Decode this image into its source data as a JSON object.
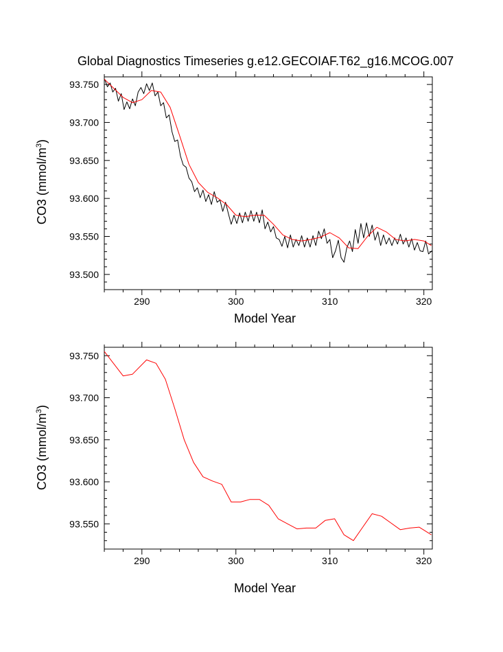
{
  "chart_data": [
    {
      "type": "line",
      "title": "Global Diagnostics Timeseries g.e12.GECOIAF.T62_g16.MCOG.007",
      "xlabel": "Model Year",
      "ylabel_main": "CO3 (mmol/m",
      "ylabel_sup": "3",
      "ylabel_close": ")",
      "xlim": [
        286.0,
        320.9
      ],
      "ylim": [
        93.48,
        93.76
      ],
      "xticks": [
        290,
        300,
        310,
        320
      ],
      "xtick_labels": [
        "290",
        "300",
        "310",
        "320"
      ],
      "yticks": [
        93.5,
        93.55,
        93.6,
        93.65,
        93.7,
        93.75
      ],
      "ytick_labels": [
        "93.500",
        "93.550",
        "93.600",
        "93.650",
        "93.700",
        "93.750"
      ],
      "grid": false,
      "series_colors": [
        "#000000",
        "#ff0000"
      ],
      "monthly": {
        "x": [
          286.04,
          286.33,
          286.62,
          286.9,
          287.2,
          287.5,
          287.8,
          288.1,
          288.4,
          288.7,
          289.0,
          289.3,
          289.6,
          289.9,
          290.2,
          290.5,
          290.8,
          291.1,
          291.4,
          291.7,
          292.0,
          292.3,
          292.6,
          292.9,
          293.2,
          293.5,
          293.8,
          294.1,
          294.4,
          294.7,
          295.0,
          295.3,
          295.6,
          295.9,
          296.2,
          296.5,
          296.8,
          297.1,
          297.4,
          297.7,
          298.0,
          298.3,
          298.6,
          298.9,
          299.2,
          299.5,
          299.8,
          300.1,
          300.4,
          300.7,
          301.0,
          301.3,
          301.6,
          301.9,
          302.2,
          302.5,
          302.8,
          303.1,
          303.4,
          303.7,
          304.0,
          304.3,
          304.6,
          304.9,
          305.2,
          305.5,
          305.8,
          306.1,
          306.4,
          306.7,
          307.0,
          307.3,
          307.6,
          307.9,
          308.2,
          308.5,
          308.8,
          309.1,
          309.4,
          309.7,
          310.0,
          310.3,
          310.6,
          310.9,
          311.2,
          311.5,
          311.8,
          312.1,
          312.4,
          312.7,
          313.0,
          313.3,
          313.6,
          313.9,
          314.2,
          314.5,
          314.8,
          315.1,
          315.4,
          315.7,
          316.0,
          316.3,
          316.6,
          316.9,
          317.2,
          317.5,
          317.8,
          318.1,
          318.4,
          318.7,
          319.0,
          319.3,
          319.6,
          319.9,
          320.2,
          320.5,
          320.85
        ],
        "y": [
          93.757,
          93.747,
          93.752,
          93.74,
          93.745,
          93.728,
          93.738,
          93.717,
          93.727,
          93.718,
          93.731,
          93.722,
          93.74,
          93.746,
          93.738,
          93.751,
          93.742,
          93.752,
          93.735,
          93.74,
          93.722,
          93.726,
          93.706,
          93.71,
          93.688,
          93.675,
          93.677,
          93.656,
          93.644,
          93.641,
          93.627,
          93.622,
          93.609,
          93.614,
          93.601,
          93.611,
          93.596,
          93.605,
          93.592,
          93.609,
          93.595,
          93.598,
          93.583,
          93.595,
          93.58,
          93.566,
          93.578,
          93.567,
          93.581,
          93.568,
          93.582,
          93.57,
          93.584,
          93.57,
          93.582,
          93.568,
          93.585,
          93.56,
          93.569,
          93.556,
          93.563,
          93.548,
          93.546,
          93.537,
          93.55,
          93.535,
          93.552,
          93.536,
          93.546,
          93.538,
          93.551,
          93.536,
          93.548,
          93.536,
          93.551,
          93.538,
          93.557,
          93.547,
          93.56,
          93.541,
          93.546,
          93.522,
          93.531,
          93.545,
          93.522,
          93.516,
          93.535,
          93.544,
          93.53,
          93.559,
          93.541,
          93.567,
          93.548,
          93.568,
          93.55,
          93.565,
          93.545,
          93.556,
          93.538,
          93.552,
          93.54,
          93.548,
          93.538,
          93.548,
          93.54,
          93.553,
          93.54,
          93.548,
          93.536,
          93.547,
          93.532,
          93.542,
          93.531,
          93.53,
          93.544,
          93.527,
          93.531
        ]
      },
      "smoothed": {
        "x": [
          286.0,
          287.0,
          288.0,
          289.0,
          290.0,
          291.0,
          292.0,
          293.0,
          294.0,
          295.0,
          296.0,
          297.0,
          298.0,
          299.0,
          300.0,
          301.0,
          302.0,
          303.0,
          304.0,
          305.0,
          306.0,
          307.0,
          308.0,
          309.0,
          310.0,
          311.0,
          312.0,
          313.0,
          314.0,
          315.0,
          316.0,
          317.0,
          318.0,
          319.0,
          320.0,
          320.8
        ],
        "y": [
          93.757,
          93.745,
          93.733,
          93.726,
          93.73,
          93.742,
          93.74,
          93.72,
          93.683,
          93.645,
          93.621,
          93.608,
          93.601,
          93.592,
          93.578,
          93.576,
          93.578,
          93.578,
          93.566,
          93.552,
          93.546,
          93.544,
          93.546,
          93.549,
          93.555,
          93.548,
          93.535,
          93.534,
          93.55,
          93.562,
          93.556,
          93.546,
          93.544,
          93.546,
          93.544,
          93.538
        ]
      }
    },
    {
      "type": "line",
      "title": "",
      "xlabel": "Model Year",
      "ylabel_main": "CO3 (mmol/m",
      "ylabel_sup": "3",
      "ylabel_close": ")",
      "xlim": [
        286.0,
        320.9
      ],
      "ylim": [
        93.52,
        93.76
      ],
      "xticks": [
        290,
        300,
        310,
        320
      ],
      "xtick_labels": [
        "290",
        "300",
        "310",
        "320"
      ],
      "yticks": [
        93.55,
        93.6,
        93.65,
        93.7,
        93.75
      ],
      "ytick_labels": [
        "93.550",
        "93.600",
        "93.650",
        "93.700",
        "93.750"
      ],
      "grid": false,
      "series_colors": [
        "#ff0000"
      ],
      "annual": {
        "x": [
          286.0,
          288.0,
          289.0,
          290.5,
          291.5,
          292.5,
          293.5,
          294.5,
          295.5,
          296.5,
          297.5,
          298.5,
          299.5,
          300.5,
          301.5,
          302.5,
          303.5,
          304.5,
          305.5,
          306.5,
          307.5,
          308.5,
          309.5,
          310.5,
          311.5,
          312.5,
          313.5,
          314.5,
          315.5,
          316.5,
          317.5,
          318.5,
          319.5,
          320.8
        ],
        "y": [
          93.755,
          93.726,
          93.728,
          93.745,
          93.741,
          93.722,
          93.687,
          93.65,
          93.623,
          93.606,
          93.601,
          93.597,
          93.576,
          93.576,
          93.579,
          93.579,
          93.572,
          93.556,
          93.55,
          93.544,
          93.545,
          93.545,
          93.554,
          93.556,
          93.537,
          93.53,
          93.546,
          93.562,
          93.559,
          93.551,
          93.543,
          93.545,
          93.546,
          93.537
        ]
      }
    }
  ]
}
